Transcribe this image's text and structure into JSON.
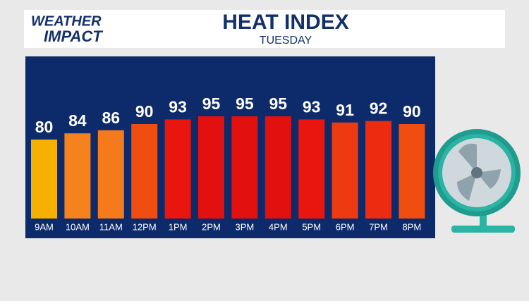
{
  "brand": {
    "line1": "WEATHER",
    "line2": "IMPACT"
  },
  "chart_data": {
    "type": "bar",
    "title": "HEAT INDEX",
    "subtitle": "TUESDAY",
    "categories": [
      "9AM",
      "10AM",
      "11AM",
      "12PM",
      "1PM",
      "2PM",
      "3PM",
      "4PM",
      "5PM",
      "6PM",
      "7PM",
      "8PM"
    ],
    "values": [
      80,
      84,
      86,
      90,
      93,
      95,
      95,
      95,
      93,
      91,
      92,
      90
    ],
    "colors": [
      "#f6b000",
      "#f5821c",
      "#f47a1c",
      "#f04e10",
      "#e8160f",
      "#e2100f",
      "#e2100f",
      "#e2100f",
      "#e8160f",
      "#ee3a10",
      "#ec2b10",
      "#f04e10"
    ],
    "ylim": [
      29,
      100
    ]
  }
}
